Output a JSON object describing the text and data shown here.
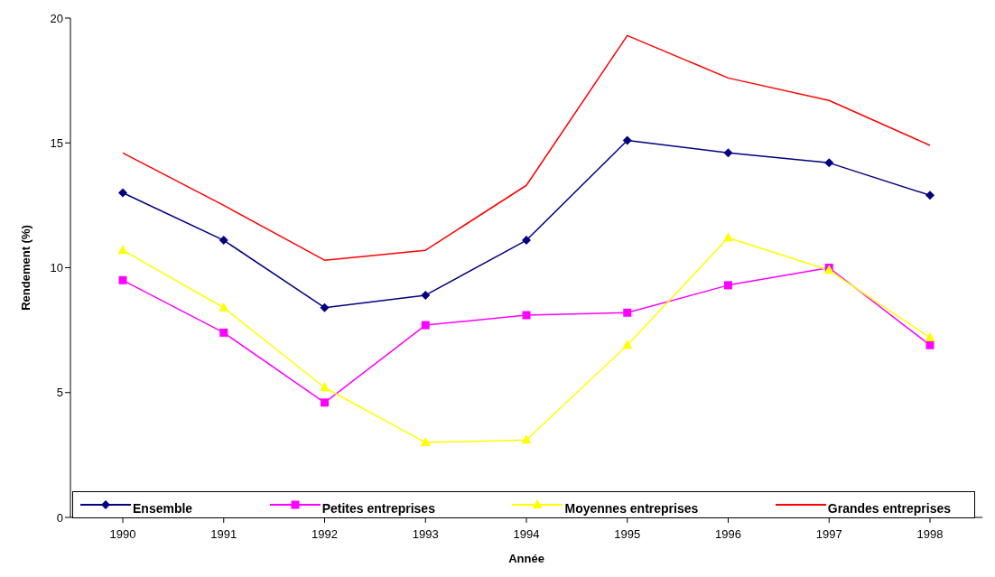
{
  "chart_data": {
    "type": "line",
    "xlabel": "Année",
    "ylabel": "Rendement (%)",
    "categories": [
      "1990",
      "1991",
      "1992",
      "1993",
      "1994",
      "1995",
      "1996",
      "1997",
      "1998"
    ],
    "ylim": [
      0,
      20
    ],
    "yticks": [
      0,
      5,
      10,
      15,
      20
    ],
    "grid": false,
    "legend": "bottom",
    "series": [
      {
        "name": "Ensemble",
        "color": "#000080",
        "marker": "diamond",
        "values": [
          13.0,
          11.1,
          8.4,
          8.9,
          11.1,
          15.1,
          14.6,
          14.2,
          12.9
        ]
      },
      {
        "name": "Petites entreprises",
        "color": "#ff00ff",
        "marker": "square",
        "values": [
          9.5,
          7.4,
          4.6,
          7.7,
          8.1,
          8.2,
          9.3,
          10.0,
          6.9
        ]
      },
      {
        "name": "Moyennes entreprises",
        "color": "#ffff00",
        "marker": "triangle",
        "values": [
          10.7,
          8.4,
          5.2,
          3.0,
          3.1,
          6.9,
          11.2,
          9.9,
          7.2
        ]
      },
      {
        "name": "Grandes entreprises",
        "color": "#ff0000",
        "marker": "none",
        "values": [
          14.6,
          12.5,
          10.3,
          10.7,
          13.3,
          19.3,
          17.6,
          16.7,
          14.9
        ]
      }
    ]
  }
}
